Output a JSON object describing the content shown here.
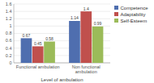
{
  "chart_data": {
    "type": "bar",
    "xlabel": "Level of ambulation",
    "categories": [
      "Functional ambulation",
      "Non functional\nambulation"
    ],
    "series": [
      {
        "name": "Competence",
        "color": "#4F6EAF",
        "values": [
          0.67,
          1.14
        ]
      },
      {
        "name": "Adaptability",
        "color": "#C0504D",
        "values": [
          0.45,
          1.4
        ]
      },
      {
        "name": "Self-Esteem",
        "color": "#9BBB59",
        "values": [
          0.58,
          0.99
        ]
      }
    ],
    "ylim": [
      0,
      1.6
    ],
    "yticks": [
      0,
      0.2,
      0.4,
      0.6,
      0.8,
      1,
      1.2,
      1.4,
      1.6
    ],
    "grid": true,
    "legend": "right",
    "data_labels": true
  }
}
